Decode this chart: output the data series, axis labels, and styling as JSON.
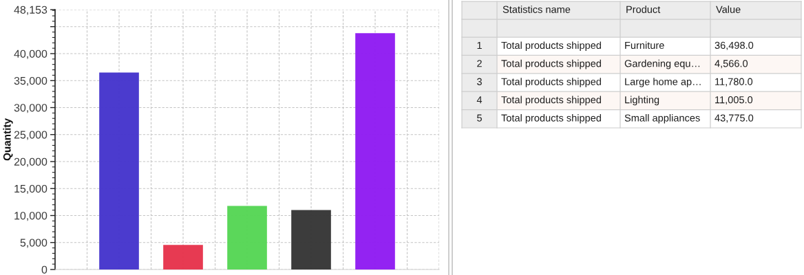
{
  "chart_data": {
    "type": "bar",
    "categories": [
      null,
      null,
      null,
      null,
      null
    ],
    "values": [
      36498,
      4566,
      11780,
      11005,
      43775
    ],
    "colors": [
      "#4535cc",
      "#e6344c",
      "#56d655",
      "#363636",
      "#8f1cf2"
    ],
    "ylabel": "Quantity",
    "ylim": [
      0,
      48153
    ],
    "yticks": [
      0,
      {
        "value": 5000,
        "label": "5,000"
      },
      {
        "value": 10000,
        "label": "10,000"
      },
      {
        "value": 15000,
        "label": "15,000"
      },
      {
        "value": 20000,
        "label": "20,000"
      },
      {
        "value": 25000,
        "label": "25,000"
      },
      {
        "value": 30000,
        "label": "30,000"
      },
      {
        "value": 35000,
        "label": "35,000"
      },
      {
        "value": 40000,
        "label": "40,000"
      },
      {
        "value": 45000,
        "label": null
      },
      {
        "value": 48153,
        "label": "48,153"
      }
    ],
    "grid": true,
    "tick_labels": "y",
    "annotations": [
      "Statistics name",
      "Product",
      "Value",
      "1",
      "Total products shipped",
      "Furniture",
      "36,498.0",
      "2",
      "Total products shipped",
      "Gardening equ…",
      "4,566.0",
      "3",
      "Total products shipped",
      "Large home ap…",
      "11,780.0",
      "4",
      "Total products shipped",
      "Lighting",
      "11,005.0",
      "5",
      "Total products shipped",
      "Small appliances",
      "43,775.0"
    ]
  }
}
